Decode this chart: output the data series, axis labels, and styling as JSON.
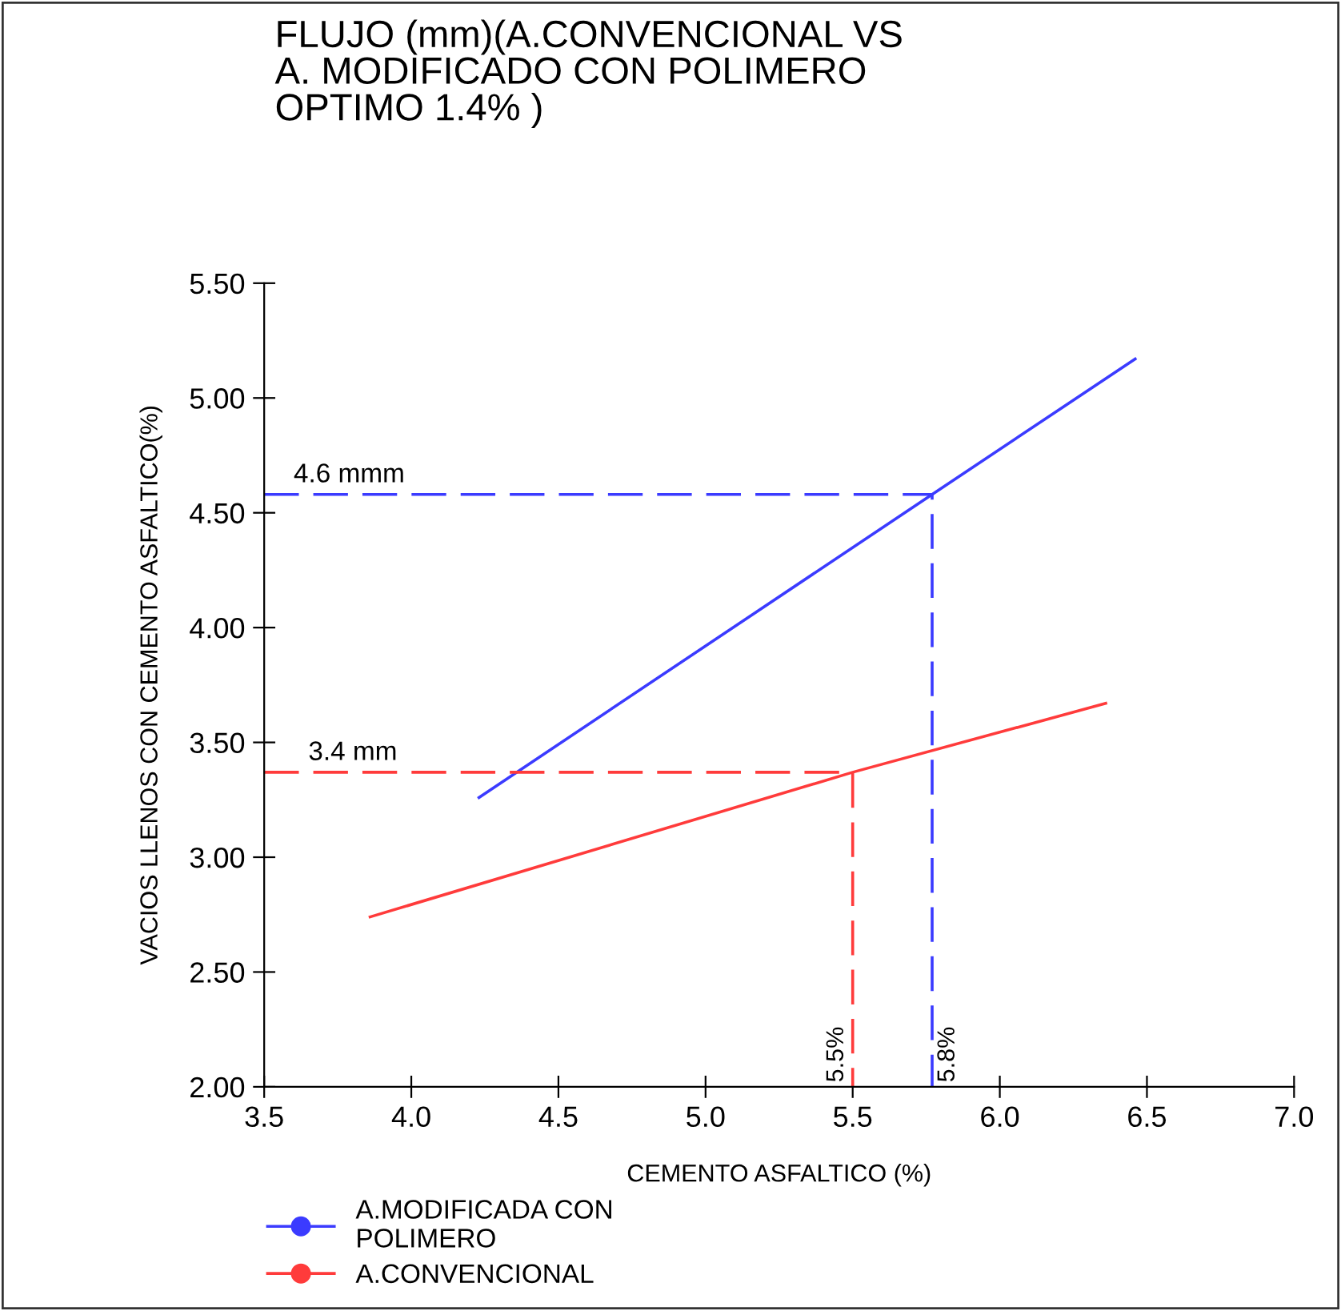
{
  "chart_data": {
    "type": "line",
    "title": "FLUJO (mm)(A.CONVENCIONAL VS\nA. MODIFICADO CON POLIMERO\nOPTIMO 1.4% )",
    "xlabel": "CEMENTO ASFALTICO (%)",
    "ylabel": "VACIOS LLENOS CON CEMENTO ASFALTICO(%)",
    "series": [
      {
        "name": "A.MODIFICADA CON\nPOLIMERO",
        "color": "#3b3bff",
        "x": [
          4.23,
          5.77,
          6.46
        ],
        "values": [
          3.26,
          4.58,
          5.17
        ]
      },
      {
        "name": "A.CONVENCIONAL",
        "color": "#ff3b3b",
        "x": [
          3.86,
          5.5,
          6.36
        ],
        "values": [
          2.74,
          3.37,
          3.67
        ]
      },
      {
        "color": "#3b3bff",
        "line_style": "dashed",
        "x": [
          3.5,
          5.77,
          5.77
        ],
        "values": [
          4.58,
          4.58,
          2.0
        ]
      },
      {
        "color": "#ff3b3b",
        "line_style": "dashed",
        "x": [
          3.5,
          5.5,
          5.5
        ],
        "values": [
          3.37,
          3.37,
          2.0
        ]
      }
    ],
    "annotations": [
      {
        "text": "4.6 mmm",
        "x": 3.6,
        "y": 4.58
      },
      {
        "text": "3.4 mm",
        "x": 3.65,
        "y": 3.37
      },
      {
        "text": "5.5%",
        "x": 5.5,
        "y": 2.0
      },
      {
        "text": "5.8%",
        "x": 5.77,
        "y": 2.0
      }
    ],
    "xlim": [
      3.5,
      7.0
    ],
    "xticks": [
      {
        "value": 3.5,
        "label": "3.5"
      },
      {
        "value": 4.0,
        "label": "4.0"
      },
      {
        "value": 4.5,
        "label": "4.5"
      },
      {
        "value": 5.0,
        "label": "5.0"
      },
      {
        "value": 5.5,
        "label": "5.5"
      },
      {
        "value": 6.0,
        "label": "6.0"
      },
      {
        "value": 6.5,
        "label": "6.5"
      },
      {
        "value": 7.0,
        "label": "7.0"
      }
    ],
    "ylim": [
      2.0,
      5.5
    ],
    "yticks": [
      {
        "value": 2.0,
        "label": "2.00"
      },
      {
        "value": 2.5,
        "label": "2.50"
      },
      {
        "value": 3.0,
        "label": "3.00"
      },
      {
        "value": 3.5,
        "label": "3.50"
      },
      {
        "value": 4.0,
        "label": "4.00"
      },
      {
        "value": 4.5,
        "label": "4.50"
      },
      {
        "value": 5.0,
        "label": "5.00"
      },
      {
        "value": 5.5,
        "label": "5.50"
      }
    ],
    "grid": false,
    "legend": "bottom"
  }
}
